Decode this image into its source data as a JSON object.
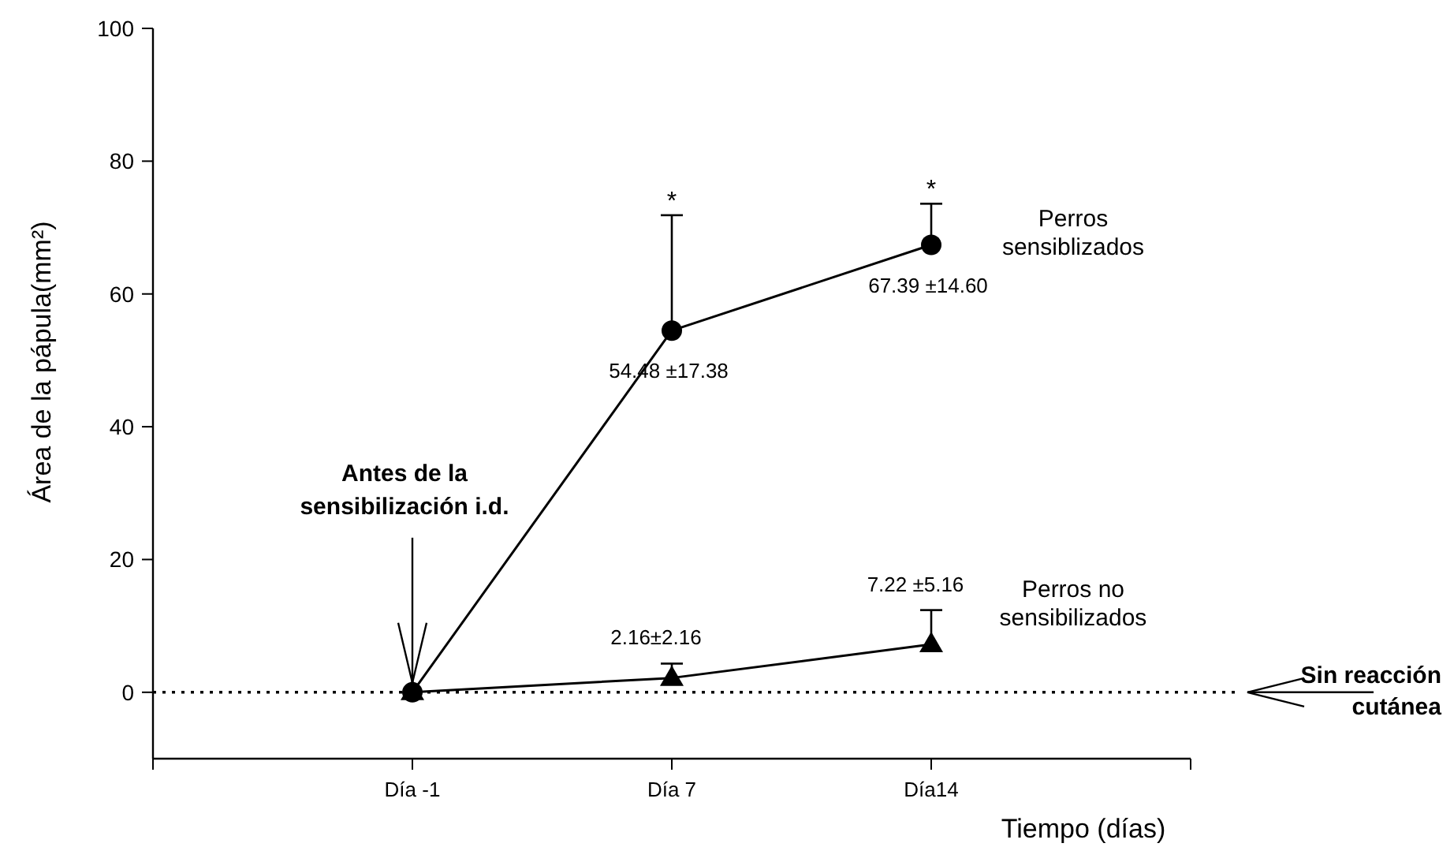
{
  "chart_data": {
    "type": "line",
    "xlabel": "Tiempo (días)",
    "ylabel": "Área de la pápula(mm²)",
    "categories": [
      "Día -1",
      "Día 7",
      "Día14"
    ],
    "ylim": [
      -10,
      100
    ],
    "yticks": [
      0,
      20,
      40,
      60,
      80,
      100
    ],
    "grid": false,
    "line_style": "solid",
    "series": [
      {
        "name": "Perros sensiblizados",
        "color": "#000000",
        "marker": "circle",
        "values": [
          0,
          54.48,
          67.39
        ],
        "errors": [
          null,
          [
            54.48,
            71.86
          ],
          [
            67.39,
            73.59
          ]
        ],
        "value_labels": [
          null,
          "54.48 ±17.38",
          "67.39 ±14.60"
        ]
      },
      {
        "name": "Perros no sensibilizados",
        "color": "#000000",
        "marker": "triangle",
        "values": [
          0,
          2.16,
          7.22
        ],
        "errors": [
          null,
          [
            2.16,
            4.32
          ],
          [
            7.22,
            12.38
          ]
        ],
        "value_labels": [
          null,
          "2.16±2.16",
          "7.22 ±5.16"
        ]
      }
    ],
    "ref_lines": [
      {
        "axis": "y",
        "value": 0,
        "color": "#000000",
        "line_style": "dotted"
      }
    ],
    "annotations": [
      "*",
      "*",
      {
        "text": "Antes de la sensibilización i.d.",
        "x": "Día -1",
        "y": 0
      },
      "Sin reacción cutánea"
    ]
  }
}
